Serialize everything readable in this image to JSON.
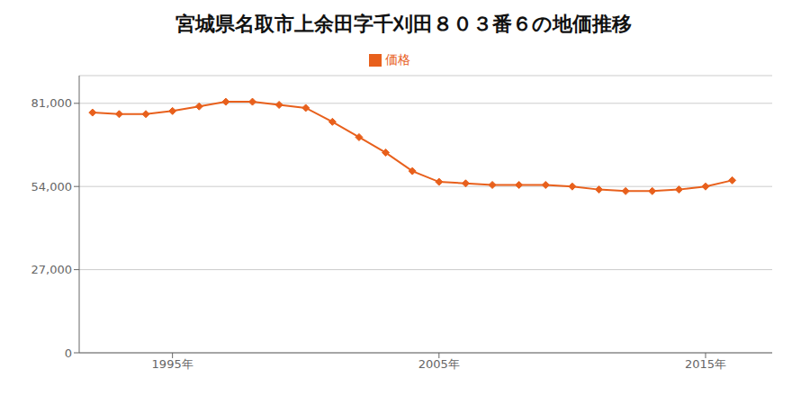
{
  "chart_data": {
    "type": "line",
    "title": "宮城県名取市上余田字千刈田８０３番６の地価推移",
    "x": [
      1992,
      1993,
      1994,
      1995,
      1996,
      1997,
      1998,
      1999,
      2000,
      2001,
      2002,
      2003,
      2004,
      2005,
      2006,
      2007,
      2008,
      2009,
      2010,
      2011,
      2012,
      2013,
      2014,
      2015,
      2016
    ],
    "series": [
      {
        "name": "価格",
        "color": "#E8601C",
        "marker": "diamond",
        "values": [
          78000,
          77500,
          77500,
          78500,
          80000,
          81500,
          81500,
          80500,
          79500,
          75000,
          70000,
          65000,
          59000,
          55500,
          55000,
          54500,
          54500,
          54500,
          54000,
          53000,
          52500,
          52500,
          53000,
          54000,
          56000
        ]
      }
    ],
    "xlim": [
      1991.5,
      2017.5
    ],
    "xticks": [
      {
        "value": 1995,
        "label": "1995年"
      },
      {
        "value": 2005,
        "label": "2005年"
      },
      {
        "value": 2015,
        "label": "2015年"
      }
    ],
    "ylim": [
      0,
      90000
    ],
    "yticks": [
      0,
      {
        "value": 27000,
        "label": "27,000"
      },
      {
        "value": 54000,
        "label": "54,000"
      },
      {
        "value": 81000,
        "label": "81,000"
      }
    ],
    "grid": "y",
    "legend": "top"
  }
}
